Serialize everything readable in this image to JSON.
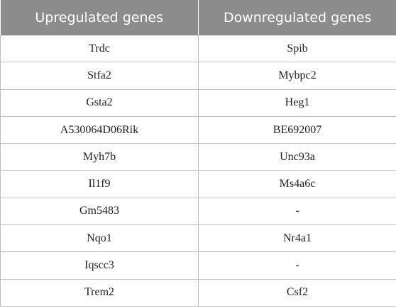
{
  "table": {
    "headers": [
      "Upregulated genes",
      "Downregulated genes"
    ],
    "rows": [
      [
        "Trdc",
        "Spib"
      ],
      [
        "Stfa2",
        "Mybpc2"
      ],
      [
        "Gsta2",
        "Heg1"
      ],
      [
        "A530064D06Rik",
        "BE692007"
      ],
      [
        "Myh7b",
        "Unc93a"
      ],
      [
        "Il1f9",
        "Ms4a6c"
      ],
      [
        "Gm5483",
        "-"
      ],
      [
        "Nqo1",
        "Nr4a1"
      ],
      [
        "Iqscc3",
        "-"
      ],
      [
        "Trem2",
        "Csf2"
      ]
    ]
  },
  "colors": {
    "header_background": "#8c8c8c",
    "header_text": "#ffffff",
    "grid_lines": "#bdbdbd"
  }
}
